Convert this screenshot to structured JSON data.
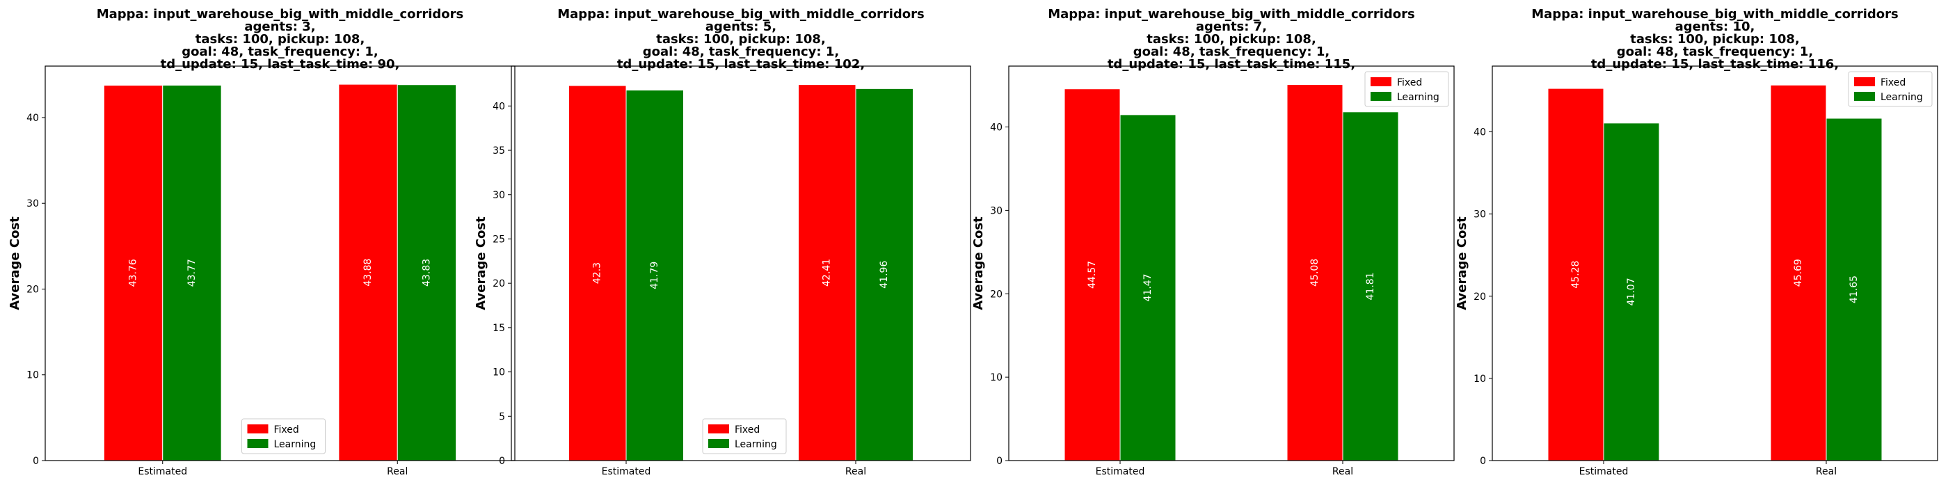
{
  "chart_data": [
    {
      "type": "bar",
      "title_lines": [
        "Mappa: input_warehouse_big_with_middle_corridors",
        "agents: 3,",
        "tasks: 100, pickup: 108,",
        "goal: 48, task_frequency: 1,",
        "td_update: 15, last_task_time: 90,"
      ],
      "ylabel": "Average Cost",
      "categories": [
        "Estimated",
        "Real"
      ],
      "series": [
        {
          "name": "Fixed",
          "color": "#ff0000",
          "values": [
            43.76,
            43.88
          ]
        },
        {
          "name": "Learning",
          "color": "#008000",
          "values": [
            43.77,
            43.83
          ]
        }
      ],
      "ylim": [
        0,
        46
      ],
      "yticks": [
        0,
        10,
        20,
        30,
        40
      ],
      "legend": "lower center"
    },
    {
      "type": "bar",
      "title_lines": [
        "Mappa: input_warehouse_big_with_middle_corridors",
        "agents: 5,",
        "tasks: 100, pickup: 108,",
        "goal: 48, task_frequency: 1,",
        "td_update: 15, last_task_time: 102,"
      ],
      "ylabel": "Average Cost",
      "categories": [
        "Estimated",
        "Real"
      ],
      "series": [
        {
          "name": "Fixed",
          "color": "#ff0000",
          "values": [
            42.3,
            42.41
          ]
        },
        {
          "name": "Learning",
          "color": "#008000",
          "values": [
            41.79,
            41.96
          ]
        }
      ],
      "ylim": [
        0,
        44.5
      ],
      "yticks": [
        0,
        5,
        10,
        15,
        20,
        25,
        30,
        35,
        40
      ],
      "legend": "lower center"
    },
    {
      "type": "bar",
      "title_lines": [
        "Mappa: input_warehouse_big_with_middle_corridors",
        "agents: 7,",
        "tasks: 100, pickup: 108,",
        "goal: 48, task_frequency: 1,",
        "td_update: 15, last_task_time: 115,"
      ],
      "ylabel": "Average Cost",
      "categories": [
        "Estimated",
        "Real"
      ],
      "series": [
        {
          "name": "Fixed",
          "color": "#ff0000",
          "values": [
            44.57,
            45.08
          ]
        },
        {
          "name": "Learning",
          "color": "#008000",
          "values": [
            41.47,
            41.81
          ]
        }
      ],
      "ylim": [
        0,
        47.3
      ],
      "yticks": [
        0,
        10,
        20,
        30,
        40
      ],
      "legend": "upper right"
    },
    {
      "type": "bar",
      "title_lines": [
        "Mappa: input_warehouse_big_with_middle_corridors",
        "agents: 10,",
        "tasks: 100, pickup: 108,",
        "goal: 48, task_frequency: 1,",
        "td_update: 15, last_task_time: 116,"
      ],
      "ylabel": "Average Cost",
      "categories": [
        "Estimated",
        "Real"
      ],
      "series": [
        {
          "name": "Fixed",
          "color": "#ff0000",
          "values": [
            45.28,
            45.69
          ]
        },
        {
          "name": "Learning",
          "color": "#008000",
          "values": [
            41.07,
            41.65
          ]
        }
      ],
      "ylim": [
        0,
        48
      ],
      "yticks": [
        0,
        10,
        20,
        30,
        40
      ],
      "legend": "upper right"
    }
  ]
}
